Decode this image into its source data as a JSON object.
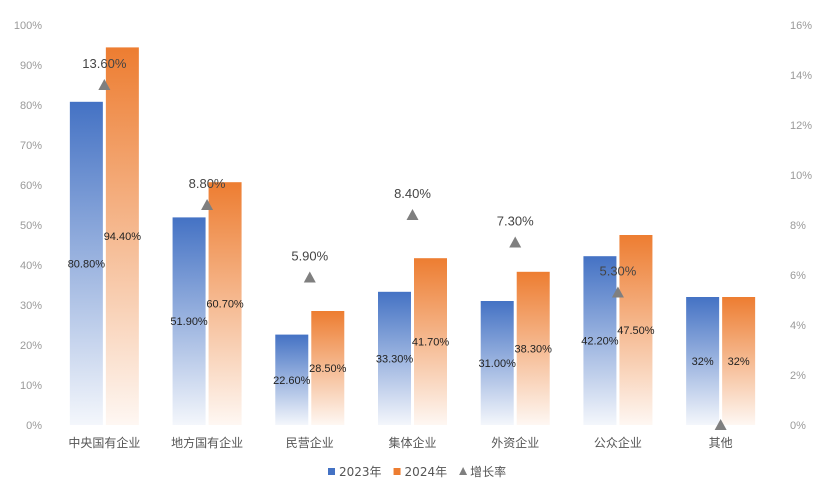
{
  "chart_data": {
    "type": "bar",
    "categories": [
      "中央国有企业",
      "地方国有企业",
      "民营企业",
      "集体企业",
      "外资企业",
      "公众企业",
      "其他"
    ],
    "series": [
      {
        "name": "2023年",
        "axis": "left",
        "values": [
          80.8,
          51.9,
          22.6,
          33.3,
          31.0,
          42.2,
          32
        ],
        "labels": [
          "80.80%",
          "51.90%",
          "22.60%",
          "33.30%",
          "31.00%",
          "42.20%",
          "32%"
        ],
        "color": "#4472C4"
      },
      {
        "name": "2024年",
        "axis": "left",
        "values": [
          94.4,
          60.7,
          28.5,
          41.7,
          38.3,
          47.5,
          32
        ],
        "labels": [
          "94.40%",
          "60.70%",
          "28.50%",
          "41.70%",
          "38.30%",
          "47.50%",
          "32%"
        ],
        "color": "#ED7D31"
      },
      {
        "name": "增长率",
        "axis": "right",
        "type": "scatter",
        "marker": "triangle",
        "values": [
          13.6,
          8.8,
          5.9,
          8.4,
          7.3,
          5.3,
          0
        ],
        "labels": [
          "13.60%",
          "8.80%",
          "5.90%",
          "8.40%",
          "7.30%",
          "5.30%",
          ""
        ],
        "color": "#7F7F7F"
      }
    ],
    "y_left": {
      "ylim": [
        0,
        100
      ],
      "ticks": [
        "0%",
        "10%",
        "20%",
        "30%",
        "40%",
        "50%",
        "60%",
        "70%",
        "80%",
        "90%",
        "100%"
      ]
    },
    "y_right": {
      "ylim": [
        0,
        16
      ],
      "ticks": [
        "0%",
        "2%",
        "4%",
        "6%",
        "8%",
        "10%",
        "12%",
        "14%",
        "16%"
      ]
    },
    "grid": false,
    "legend": "bottom"
  }
}
